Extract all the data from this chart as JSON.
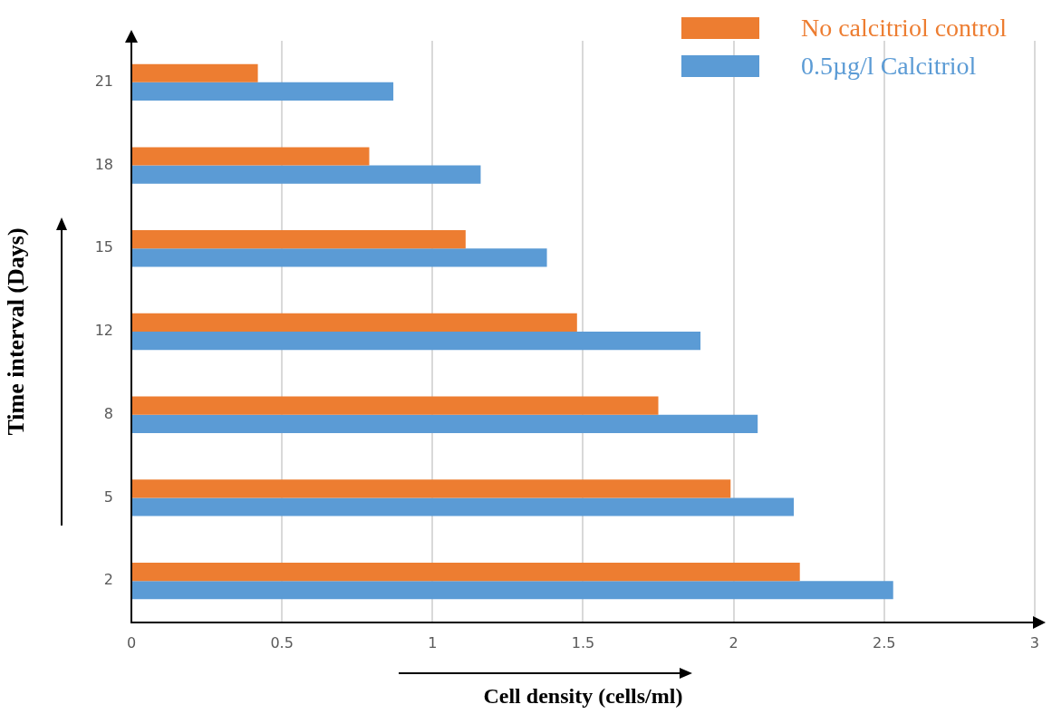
{
  "chart_data": {
    "type": "bar",
    "orientation": "horizontal",
    "xlabel": "Cell density (cells/ml)",
    "ylabel": "Time interval (Days)",
    "categories": [
      "21",
      "18",
      "15",
      "12",
      "8",
      "5",
      "2"
    ],
    "series": [
      {
        "name": "No calcitriol control",
        "color": "#ed7d31",
        "values": [
          0.42,
          0.79,
          1.11,
          1.48,
          1.75,
          1.99,
          2.22
        ]
      },
      {
        "name": "0.5µg/l Calcitriol",
        "color": "#5b9bd5",
        "values": [
          0.87,
          1.16,
          1.38,
          1.89,
          2.08,
          2.2,
          2.53
        ]
      }
    ],
    "xlim": [
      0,
      3
    ],
    "xticks": [
      0,
      0.5,
      1,
      1.5,
      2,
      2.5,
      3
    ],
    "grid": "x",
    "legend": "top right"
  }
}
